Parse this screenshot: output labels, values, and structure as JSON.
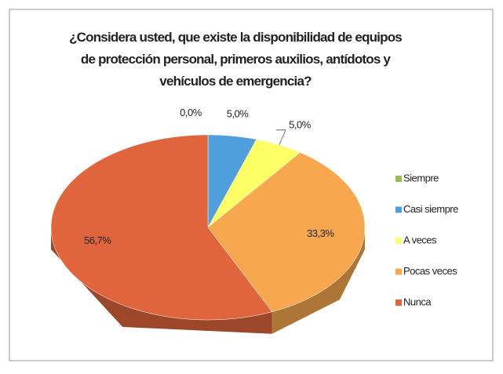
{
  "chart_data": {
    "type": "pie",
    "title": "¿Considera usted, que existe la disponibilidad de equipos de protección personal, primeros auxilios, antídotos y vehículos de emergencia?",
    "categories": [
      "Siempre",
      "Casi siempre",
      "A veces",
      "Pocas veces",
      "Nunca"
    ],
    "values": [
      0.0,
      5.0,
      5.0,
      33.3,
      56.7
    ],
    "value_labels": [
      "0,0%",
      "5,0%",
      "5,0%",
      "33,3%",
      "56,7%"
    ],
    "colors": [
      "#9bbb59",
      "#4f9fdc",
      "#ffff66",
      "#f7a84f",
      "#e0653c"
    ],
    "legend": "right"
  }
}
